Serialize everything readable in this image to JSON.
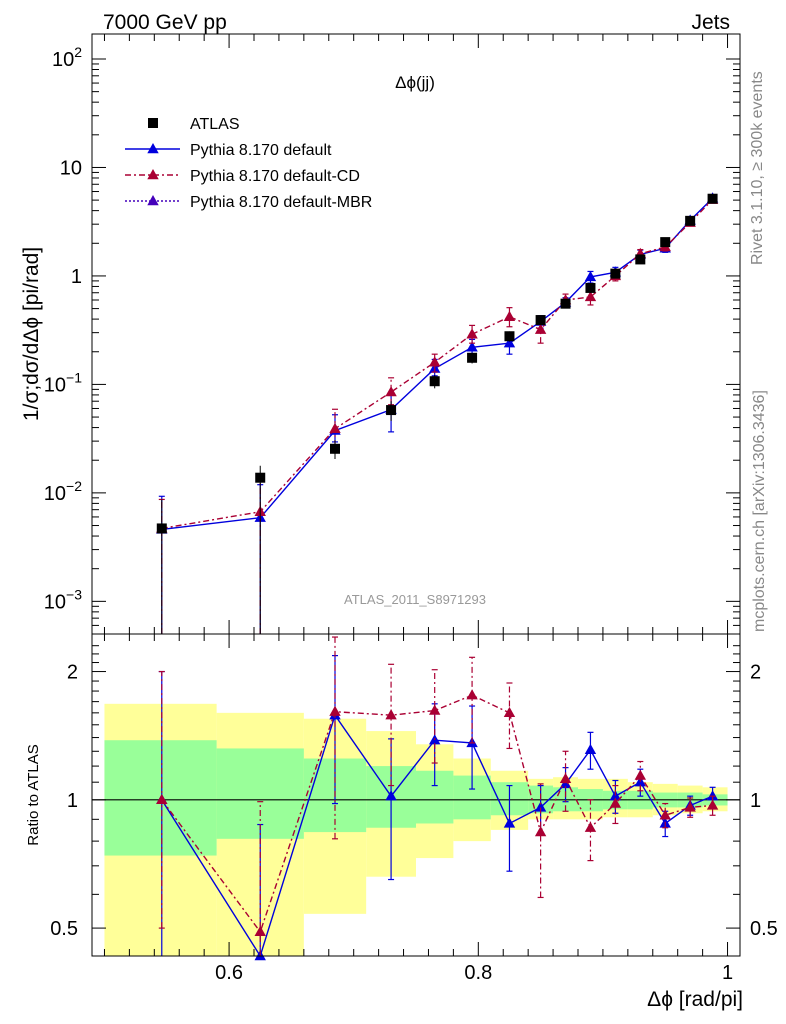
{
  "header": {
    "left": "7000 GeV pp",
    "right": "Jets"
  },
  "side_text": {
    "rivet": "Rivet 3.1.10, ≥ 300k events",
    "source": "mcplots.cern.ch [arXiv:1306.3436]"
  },
  "chart_data": [
    {
      "type": "scatter",
      "title": "Δϕ(jj)",
      "watermark": "ATLAS_2011_S8971293",
      "ylabel": "1/σ;dσ/dΔϕ [pi/rad]",
      "yscale": "log",
      "ylim": [
        0.0005,
        170
      ],
      "xlim": [
        0.49,
        1.01
      ],
      "legend_position": "top-left",
      "y_ticks": [
        {
          "v": 0.001,
          "base": "10",
          "exp": "−3"
        },
        {
          "v": 0.01,
          "base": "10",
          "exp": "−2"
        },
        {
          "v": 0.1,
          "base": "10",
          "exp": "−1"
        },
        {
          "v": 1,
          "base": "1",
          "exp": ""
        },
        {
          "v": 10,
          "base": "10",
          "exp": ""
        },
        {
          "v": 100,
          "base": "10",
          "exp": "2"
        }
      ],
      "x": [
        0.546,
        0.625,
        0.685,
        0.73,
        0.765,
        0.795,
        0.825,
        0.85,
        0.87,
        0.89,
        0.91,
        0.93,
        0.95,
        0.97,
        0.988
      ],
      "series": [
        {
          "name": "ATLAS",
          "style": "data",
          "color": "#000000",
          "values": [
            0.0047,
            0.0138,
            0.0255,
            0.058,
            0.107,
            0.176,
            0.278,
            0.392,
            0.555,
            0.775,
            1.05,
            1.42,
            2.05,
            3.22,
            5.15
          ],
          "err_lo": [
            0.0047,
            0.0138,
            0.005,
            0.012,
            0.015,
            0.02,
            0.03,
            0.04,
            0.05,
            0.06,
            0.07,
            0.08,
            0.1,
            0.12,
            0.15
          ],
          "err_hi": [
            0.004,
            0.004,
            0.005,
            0.012,
            0.015,
            0.02,
            0.03,
            0.04,
            0.05,
            0.06,
            0.07,
            0.08,
            0.1,
            0.12,
            0.15
          ]
        },
        {
          "name": "Pythia 8.170 default",
          "style": "solid",
          "color": "#0000dd",
          "values": [
            0.0046,
            0.0059,
            0.0375,
            0.0585,
            0.14,
            0.22,
            0.24,
            0.38,
            0.57,
            0.98,
            1.08,
            1.58,
            1.8,
            3.25,
            5.2
          ],
          "err_lo": [
            0.0046,
            0.0059,
            0.008,
            0.022,
            0.02,
            0.03,
            0.05,
            0.05,
            0.06,
            0.12,
            0.12,
            0.15,
            0.15,
            0.2,
            0.25
          ],
          "err_hi": [
            0.0047,
            0.006,
            0.015,
            0.022,
            0.03,
            0.04,
            0.05,
            0.05,
            0.06,
            0.12,
            0.12,
            0.15,
            0.15,
            0.2,
            0.25
          ]
        },
        {
          "name": "Pythia 8.170 default-CD",
          "style": "dashdot",
          "color": "#aa0033",
          "values": [
            0.0047,
            0.0067,
            0.039,
            0.085,
            0.16,
            0.29,
            0.42,
            0.32,
            0.6,
            0.64,
            1.0,
            1.6,
            1.85,
            3.1,
            5.05
          ],
          "err_lo": [
            0.0047,
            0.0067,
            0.012,
            0.02,
            0.03,
            0.05,
            0.08,
            0.08,
            0.08,
            0.1,
            0.1,
            0.15,
            0.15,
            0.2,
            0.25
          ],
          "err_hi": [
            0.004,
            0.006,
            0.02,
            0.03,
            0.03,
            0.06,
            0.09,
            0.08,
            0.08,
            0.1,
            0.1,
            0.15,
            0.15,
            0.2,
            0.25
          ]
        },
        {
          "name": "Pythia 8.170 default-MBR",
          "style": "dotted",
          "color": "#4400bb",
          "values": [],
          "err_lo": [],
          "err_hi": []
        }
      ]
    },
    {
      "type": "line",
      "ylabel": "Ratio to ATLAS",
      "xlabel": "Δϕ [rad/pi]",
      "yscale": "log",
      "ylim": [
        0.43,
        2.45
      ],
      "xlim": [
        0.49,
        1.01
      ],
      "y_ticks": [
        {
          "v": 0.5,
          "label": "0.5"
        },
        {
          "v": 1,
          "label": "1"
        },
        {
          "v": 2,
          "label": "2"
        }
      ],
      "x_ticks": [
        {
          "v": 0.6,
          "label": "0.6"
        },
        {
          "v": 0.8,
          "label": "0.8"
        },
        {
          "v": 1,
          "label": "1"
        }
      ],
      "bands": {
        "edges": [
          0.5,
          0.59,
          0.66,
          0.71,
          0.75,
          0.78,
          0.81,
          0.84,
          0.86,
          0.88,
          0.9,
          0.92,
          0.94,
          0.96,
          0.98,
          1.0
        ],
        "yellow_lo": [
          0.25,
          0.43,
          0.54,
          0.66,
          0.73,
          0.8,
          0.85,
          0.9,
          0.9,
          0.9,
          0.91,
          0.91,
          0.92,
          0.93,
          0.94
        ],
        "yellow_hi": [
          1.68,
          1.6,
          1.55,
          1.45,
          1.35,
          1.25,
          1.17,
          1.12,
          1.13,
          1.12,
          1.12,
          1.1,
          1.09,
          1.08,
          1.07
        ],
        "green_lo": [
          0.74,
          0.81,
          0.84,
          0.86,
          0.88,
          0.9,
          0.92,
          0.93,
          0.94,
          0.94,
          0.95,
          0.95,
          0.96,
          0.96,
          0.97
        ],
        "green_hi": [
          1.38,
          1.32,
          1.25,
          1.2,
          1.17,
          1.14,
          1.1,
          1.08,
          1.07,
          1.06,
          1.05,
          1.05,
          1.04,
          1.04,
          1.03
        ]
      },
      "x": [
        0.546,
        0.625,
        0.685,
        0.73,
        0.765,
        0.795,
        0.825,
        0.85,
        0.87,
        0.89,
        0.91,
        0.93,
        0.95,
        0.97,
        0.988
      ],
      "series": [
        {
          "name": "Pythia 8.170 default",
          "style": "solid",
          "color": "#0000dd",
          "values": [
            1.0,
            0.375,
            1.58,
            1.02,
            1.38,
            1.36,
            0.88,
            0.96,
            1.09,
            1.31,
            1.02,
            1.1,
            0.88,
            0.97,
            1.02
          ],
          "err_lo": [
            0.57,
            0.3,
            0.6,
            0.37,
            0.3,
            0.3,
            0.2,
            0.12,
            0.1,
            0.13,
            0.09,
            0.08,
            0.06,
            0.05,
            0.05
          ],
          "err_hi": [
            1.0,
            0.5,
            0.6,
            0.37,
            0.3,
            0.3,
            0.2,
            0.12,
            0.1,
            0.13,
            0.09,
            0.08,
            0.06,
            0.05,
            0.05
          ]
        },
        {
          "name": "Pythia 8.170 default-CD",
          "style": "dashdot",
          "color": "#aa0033",
          "values": [
            1.0,
            0.49,
            1.61,
            1.58,
            1.62,
            1.76,
            1.6,
            0.84,
            1.12,
            0.86,
            0.98,
            1.14,
            0.92,
            0.96,
            0.97
          ],
          "err_lo": [
            0.5,
            0.3,
            0.8,
            0.5,
            0.4,
            0.4,
            0.28,
            0.25,
            0.18,
            0.14,
            0.1,
            0.09,
            0.06,
            0.05,
            0.05
          ],
          "err_hi": [
            1.0,
            0.5,
            0.8,
            0.5,
            0.4,
            0.4,
            0.28,
            0.25,
            0.18,
            0.14,
            0.1,
            0.09,
            0.06,
            0.05,
            0.05
          ]
        }
      ]
    }
  ]
}
